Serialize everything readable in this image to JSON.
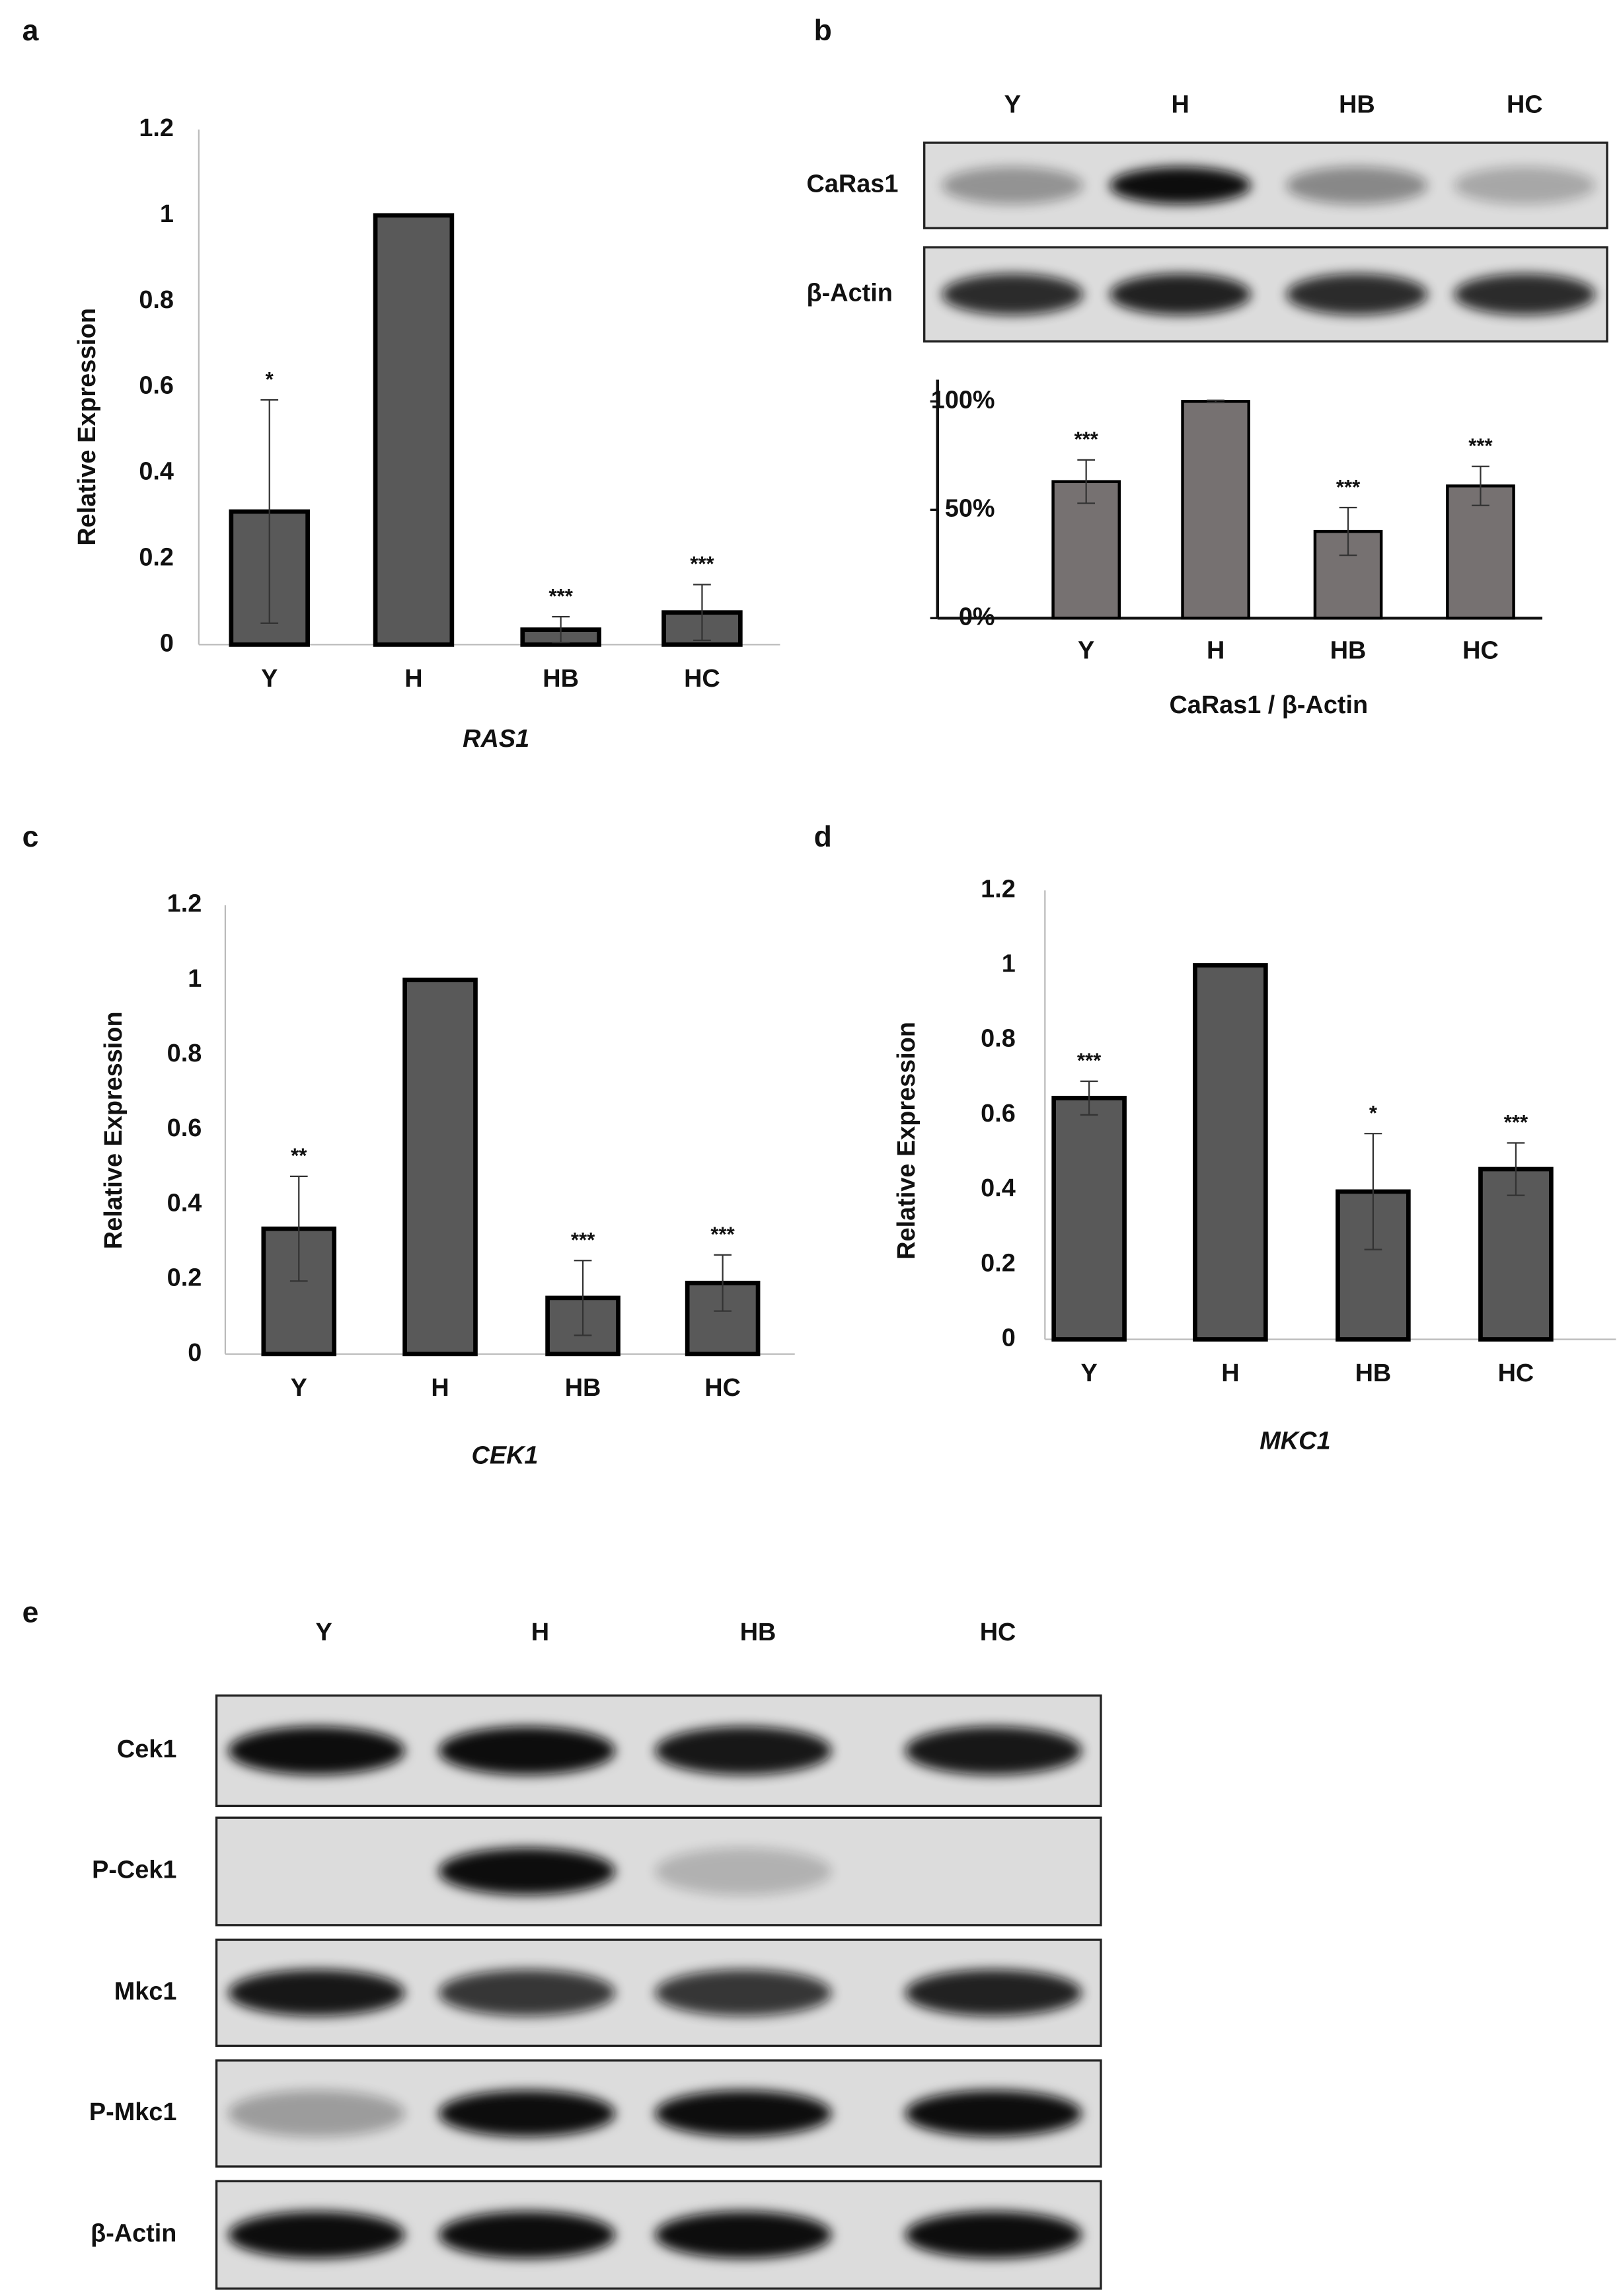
{
  "chart_data": [
    {
      "type": "bar",
      "panel": "a",
      "xlabel": "RAS1",
      "ylabel": "Relative Expression",
      "categories": [
        "Y",
        "H",
        "HB",
        "HC"
      ],
      "values": [
        0.31,
        1,
        0.035,
        0.075
      ],
      "errors": [
        0.26,
        null,
        0.03,
        0.065
      ],
      "significance": [
        "*",
        null,
        "***",
        "***"
      ],
      "color": "#595959",
      "ylim": [
        0,
        1.2
      ],
      "yticks": [
        0,
        0.2,
        0.4,
        0.6,
        0.8,
        1,
        1.2
      ]
    },
    {
      "type": "bar",
      "panel": "b",
      "xlabel": "CaRas1 / β-Actin",
      "categories": [
        "Y",
        "H",
        "HB",
        "HC"
      ],
      "values": [
        63,
        100,
        40,
        61
      ],
      "errors": [
        10,
        0.5,
        11,
        9
      ],
      "significance": [
        "***",
        null,
        "***",
        "***"
      ],
      "color": "#767171",
      "ylim": [
        0,
        110
      ],
      "yticks": [
        {
          "value": 0,
          "label": "0%"
        },
        {
          "value": 50,
          "label": "50%"
        },
        {
          "value": 100,
          "label": "100%"
        }
      ]
    },
    {
      "type": "bar",
      "panel": "c",
      "xlabel": "CEK1",
      "ylabel": "Relative Expression",
      "categories": [
        "Y",
        "H",
        "HB",
        "HC"
      ],
      "values": [
        0.335,
        1,
        0.15,
        0.19
      ],
      "errors": [
        0.14,
        null,
        0.1,
        0.075
      ],
      "significance": [
        "**",
        null,
        "***",
        "***"
      ],
      "color": "#595959",
      "ylim": [
        0,
        1.2
      ],
      "yticks": [
        0,
        0.2,
        0.4,
        0.6,
        0.8,
        1,
        1.2
      ]
    },
    {
      "type": "bar",
      "panel": "d",
      "xlabel": "MKC1",
      "ylabel": "Relative Expression",
      "categories": [
        "Y",
        "H",
        "HB",
        "HC"
      ],
      "values": [
        0.645,
        1,
        0.395,
        0.455
      ],
      "errors": [
        0.045,
        null,
        0.155,
        0.07
      ],
      "significance": [
        "***",
        null,
        "*",
        "***"
      ],
      "color": "#595959",
      "ylim": [
        0,
        1.2
      ],
      "yticks": [
        0,
        0.2,
        0.4,
        0.6,
        0.8,
        1,
        1.2
      ]
    }
  ],
  "blots": [
    {
      "lanes": [
        "Y",
        "H",
        "HB",
        "HC"
      ],
      "rows": [
        "CaRas1",
        "β-Actin"
      ]
    },
    {
      "panel": "e",
      "lanes": [
        "Y",
        "H",
        "HB",
        "HC"
      ],
      "rows": [
        "Cek1",
        "P-Cek1",
        "Mkc1",
        "P-Mkc1",
        "β-Actin"
      ]
    }
  ]
}
